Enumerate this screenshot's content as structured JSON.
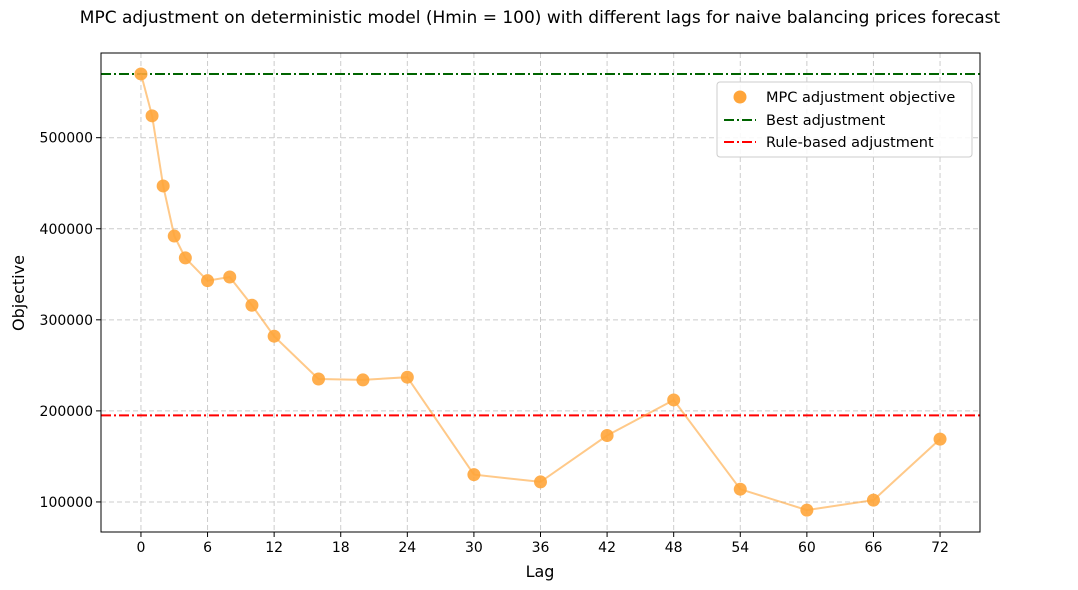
{
  "chart_data": {
    "type": "scatter",
    "title": "MPC adjustment on deterministic model (Hmin = 100) with different lags for naive balancing prices forecast",
    "xlabel": "Lag",
    "ylabel": "Objective",
    "xlim": [
      -3.6,
      75.6
    ],
    "ylim": [
      67000,
      593000
    ],
    "xticks": [
      0,
      6,
      12,
      18,
      24,
      30,
      36,
      42,
      48,
      54,
      60,
      66,
      72
    ],
    "yticks": [
      100000,
      200000,
      300000,
      400000,
      500000
    ],
    "grid": true,
    "legend_position": "top-right",
    "series": [
      {
        "name": "MPC adjustment objective",
        "color": "#ffa53a",
        "x": [
          0,
          1,
          2,
          3,
          4,
          6,
          8,
          10,
          12,
          16,
          20,
          24,
          30,
          36,
          42,
          48,
          54,
          60,
          66,
          72
        ],
        "y": [
          570000,
          524000,
          447000,
          392000,
          368000,
          343000,
          347000,
          316000,
          282000,
          235000,
          234000,
          237000,
          130000,
          122000,
          173000,
          212000,
          114000,
          91000,
          102000,
          169000
        ]
      }
    ],
    "reference_lines": [
      {
        "name": "Best adjustment",
        "y": 570000,
        "color": "#006400",
        "style": "dashdot"
      },
      {
        "name": "Rule-based adjustment",
        "y": 195000,
        "color": "#ff0000",
        "style": "dashdot"
      }
    ]
  }
}
